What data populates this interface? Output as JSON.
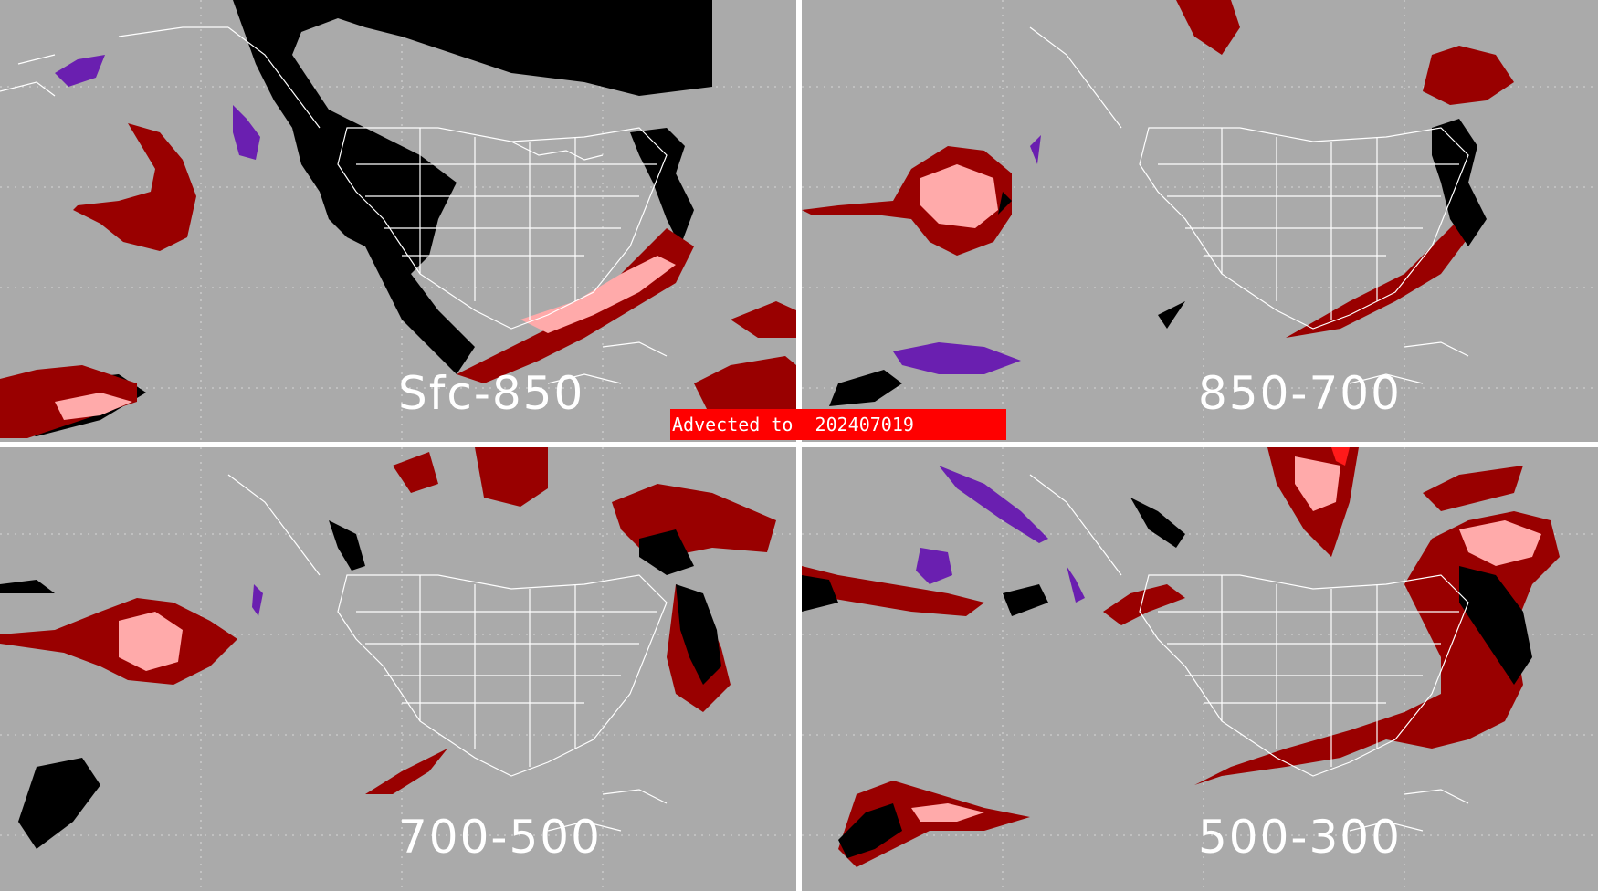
{
  "panels": [
    {
      "id": "p1",
      "label": "Sfc-850"
    },
    {
      "id": "p2",
      "label": "850-700"
    },
    {
      "id": "p3",
      "label": "700-500"
    },
    {
      "id": "p4",
      "label": "500-300"
    }
  ],
  "banner": {
    "text": "Advected to  202407019"
  },
  "colors": {
    "background": "#aaaaaa",
    "dark_red": "#990000",
    "pink": "#ffaaaa",
    "black": "#000000",
    "purple": "#6a1fb0",
    "bright_red": "#ff1a1a",
    "map_lines": "#ffffff"
  }
}
